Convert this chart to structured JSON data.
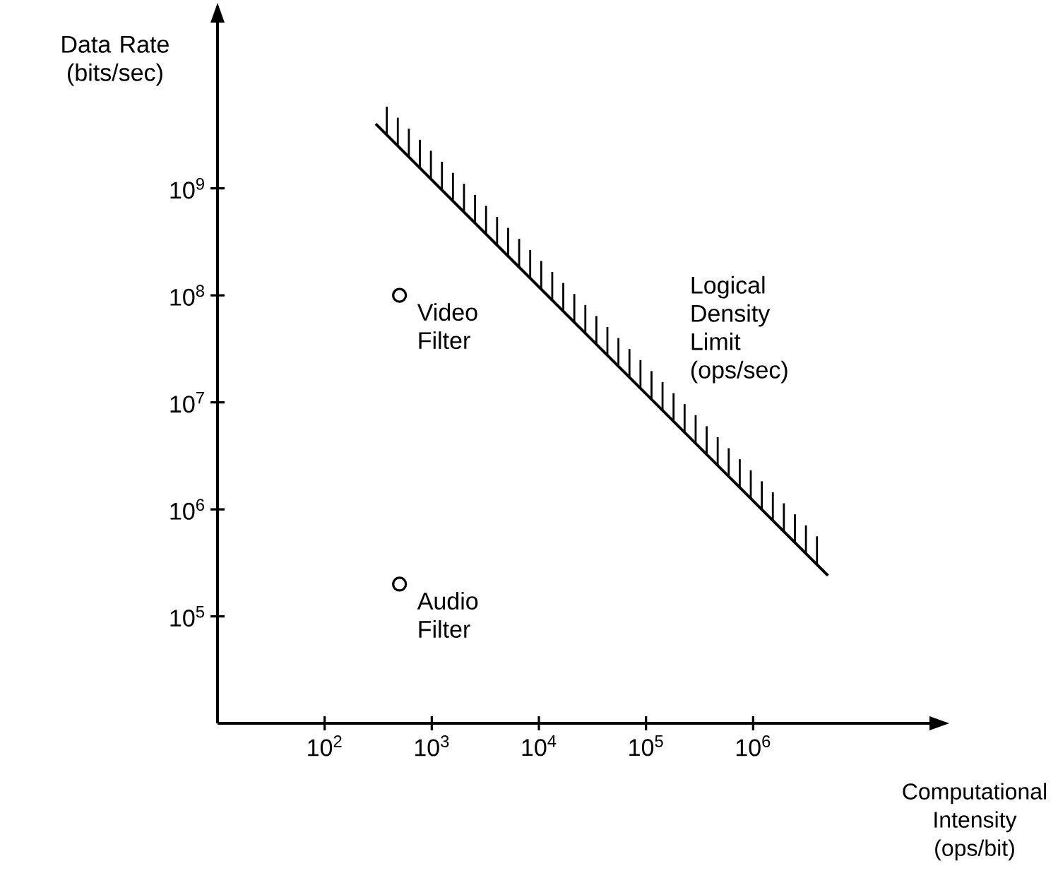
{
  "chart_data": {
    "type": "scatter",
    "log": "xy",
    "xlabel": "Computational Intensity (ops/bit)",
    "ylabel": "Data Rate (bits/sec)",
    "xlim": [
      10,
      50000000
    ],
    "ylim": [
      10000,
      40000000000
    ],
    "xticks": [
      {
        "value": 100,
        "label": "10$^{2}$"
      },
      {
        "value": 1000,
        "label": "10$^{3}$"
      },
      {
        "value": 10000,
        "label": "10$^{4}$"
      },
      {
        "value": 100000,
        "label": "10$^{5}$"
      },
      {
        "value": 1000000,
        "label": "10$^{6}$"
      }
    ],
    "yticks": [
      {
        "value": 100000,
        "label": "10$^{5}$"
      },
      {
        "value": 1000000,
        "label": "10$^{6}$"
      },
      {
        "value": 10000000,
        "label": "10$^{7}$"
      },
      {
        "value": 100000000,
        "label": "10$^{8}$"
      },
      {
        "value": 1000000000,
        "label": "10$^{9}$"
      }
    ],
    "series": [
      {
        "color": "#000000",
        "marker": "circle",
        "x": [
          500,
          500
        ],
        "values": [
          100000000,
          200000
        ]
      },
      {
        "type": "line",
        "name": "Logical Density Limit (ops/sec)",
        "color": "#000000",
        "marker": "none",
        "line_style": "solid",
        "x": [
          300,
          5000000
        ],
        "values": [
          4000000000,
          240000
        ]
      }
    ],
    "annotations": [
      {
        "text": "Video Filter",
        "x": 500,
        "y": 100000000
      },
      {
        "text": "Audio Filter",
        "x": 500,
        "y": 200000
      }
    ]
  }
}
